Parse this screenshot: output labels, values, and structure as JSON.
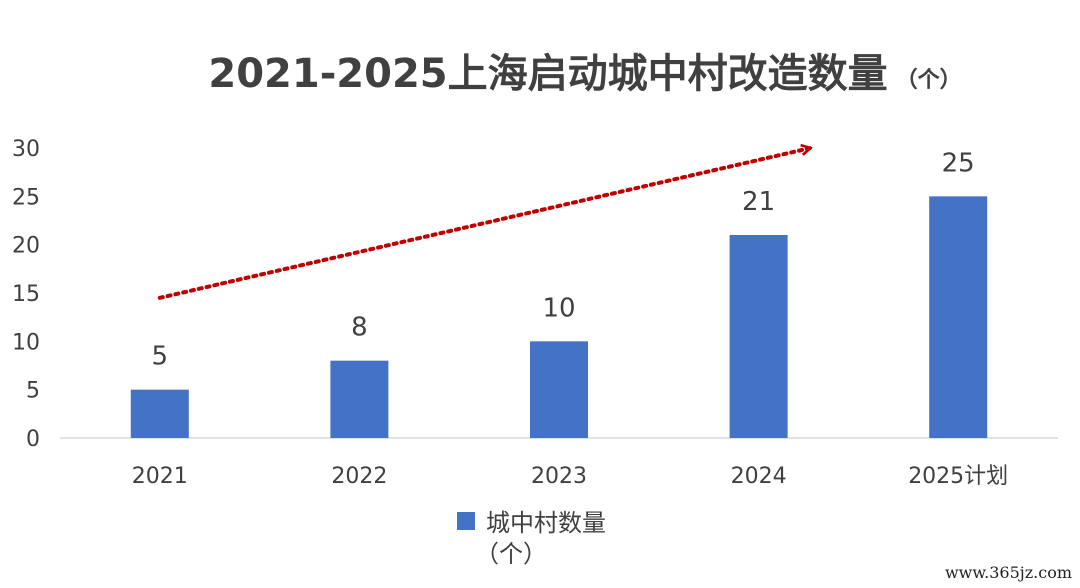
{
  "chart_data": {
    "type": "bar",
    "title": "2021-2025上海启动城中村改造数量",
    "title_unit": "（个）",
    "categories": [
      "2021",
      "2022",
      "2023",
      "2024",
      "2025计划"
    ],
    "series": [
      {
        "name": "城中村数量",
        "unit": "（个）",
        "values": [
          5,
          8,
          10,
          21,
          25
        ],
        "color": "#4472C4"
      }
    ],
    "ylim": [
      0,
      30
    ],
    "yticks": [
      0,
      5,
      10,
      15,
      20,
      25,
      30
    ],
    "grid": false,
    "legend_position": "bottom",
    "trend_arrow": {
      "style": "dotted",
      "color": "#C00000",
      "from_value": 14.5,
      "to_value": 30
    }
  },
  "watermark": "www.365jz.com"
}
